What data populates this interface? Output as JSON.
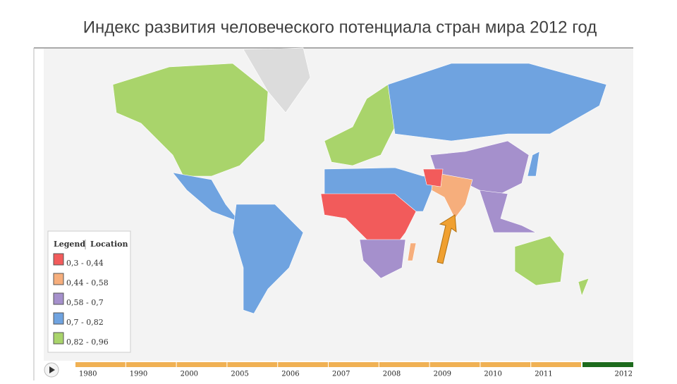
{
  "title": "Индекс развития человеческого потенциала стран мира 2012 год",
  "legend": {
    "tabs": [
      "Legend",
      "Location"
    ],
    "items": [
      {
        "label": "0,3 - 0,44",
        "color": "#f25b5b"
      },
      {
        "label": "0,44 - 0,58",
        "color": "#f6ae7c"
      },
      {
        "label": "0,58 - 0,7",
        "color": "#a590cc"
      },
      {
        "label": "0,7 - 0,82",
        "color": "#6fa3e0"
      },
      {
        "label": "0,82 - 0,96",
        "color": "#a9d46b"
      }
    ]
  },
  "timeline": {
    "years": [
      "1980",
      "1990",
      "2000",
      "2005",
      "2006",
      "2007",
      "2008",
      "2009",
      "2010",
      "2011",
      "2012"
    ]
  }
}
